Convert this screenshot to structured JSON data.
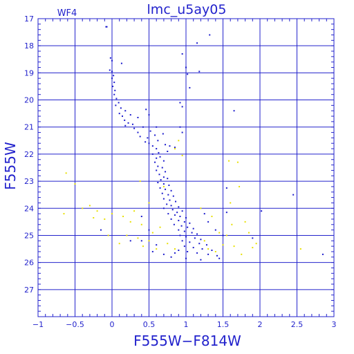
{
  "chart_data": {
    "type": "scatter",
    "title": "lmc_u5ay05",
    "subtitle": "WF4",
    "xlabel": "F555W−F814W",
    "ylabel": "F555W",
    "xlim": [
      -1,
      3
    ],
    "ylim": [
      28,
      17
    ],
    "y_inverted": true,
    "grid": true,
    "x_ticks": [
      -1,
      -0.5,
      0,
      0.5,
      1,
      1.5,
      2,
      2.5,
      3
    ],
    "x_tick_labels": [
      "−1",
      "−0.5",
      "0",
      "0.5",
      "1",
      "1.5",
      "2",
      "2.5",
      "3"
    ],
    "y_ticks": [
      17,
      18,
      19,
      20,
      21,
      22,
      23,
      24,
      25,
      26,
      27
    ],
    "y_tick_labels": [
      "17",
      "18",
      "19",
      "20",
      "21",
      "22",
      "23",
      "24",
      "25",
      "26",
      "27"
    ],
    "colors": {
      "axis": "#2222cc",
      "grid": "#2222cc",
      "blue_points": "#1a1acc",
      "yellow_points": "#e8e000"
    },
    "series": [
      {
        "color": "blue",
        "points": [
          [
            -0.08,
            17.3
          ],
          [
            -0.07,
            17.3
          ],
          [
            1.32,
            17.6
          ],
          [
            1.15,
            17.9
          ],
          [
            -0.02,
            18.45
          ],
          [
            0.0,
            18.55
          ],
          [
            0.13,
            18.65
          ],
          [
            -0.03,
            18.9
          ],
          [
            0.0,
            18.95
          ],
          [
            0.02,
            19.1
          ],
          [
            0.0,
            19.2
          ],
          [
            0.03,
            19.35
          ],
          [
            0.01,
            19.5
          ],
          [
            0.04,
            19.65
          ],
          [
            0.03,
            19.8
          ],
          [
            0.06,
            19.95
          ],
          [
            0.09,
            20.1
          ],
          [
            0.05,
            20.2
          ],
          [
            0.12,
            20.3
          ],
          [
            0.18,
            20.4
          ],
          [
            0.1,
            20.5
          ],
          [
            0.14,
            20.6
          ],
          [
            0.25,
            20.55
          ],
          [
            0.35,
            20.65
          ],
          [
            0.17,
            20.75
          ],
          [
            0.22,
            20.85
          ],
          [
            0.46,
            20.35
          ],
          [
            0.5,
            20.55
          ],
          [
            0.28,
            20.9
          ],
          [
            0.18,
            20.95
          ],
          [
            0.3,
            21.05
          ],
          [
            0.42,
            21.0
          ],
          [
            0.35,
            21.2
          ],
          [
            0.52,
            21.15
          ],
          [
            0.6,
            21.0
          ],
          [
            0.38,
            21.35
          ],
          [
            0.48,
            21.4
          ],
          [
            0.58,
            21.3
          ],
          [
            0.69,
            21.25
          ],
          [
            0.45,
            21.55
          ],
          [
            0.5,
            21.6
          ],
          [
            0.62,
            21.5
          ],
          [
            0.55,
            21.7
          ],
          [
            0.72,
            21.65
          ],
          [
            0.6,
            21.8
          ],
          [
            0.78,
            21.7
          ],
          [
            0.85,
            21.75
          ],
          [
            0.63,
            21.95
          ],
          [
            0.75,
            21.9
          ],
          [
            0.95,
            21.2
          ],
          [
            0.55,
            22.0
          ],
          [
            0.6,
            22.15
          ],
          [
            0.65,
            22.1
          ],
          [
            0.58,
            22.3
          ],
          [
            0.7,
            22.25
          ],
          [
            0.62,
            22.45
          ],
          [
            0.68,
            22.5
          ],
          [
            0.6,
            22.6
          ],
          [
            0.72,
            22.65
          ],
          [
            0.64,
            22.75
          ],
          [
            0.7,
            22.85
          ],
          [
            0.66,
            22.95
          ],
          [
            0.75,
            22.9
          ],
          [
            0.62,
            23.05
          ],
          [
            0.7,
            23.1
          ],
          [
            0.77,
            23.15
          ],
          [
            0.65,
            23.25
          ],
          [
            0.72,
            23.3
          ],
          [
            0.8,
            23.35
          ],
          [
            0.68,
            23.45
          ],
          [
            0.76,
            23.5
          ],
          [
            0.83,
            23.55
          ],
          [
            0.7,
            23.65
          ],
          [
            0.78,
            23.7
          ],
          [
            0.86,
            23.75
          ],
          [
            0.74,
            23.85
          ],
          [
            0.8,
            23.9
          ],
          [
            0.9,
            23.95
          ],
          [
            0.7,
            24.0
          ],
          [
            0.82,
            24.05
          ],
          [
            0.88,
            24.15
          ],
          [
            0.95,
            24.1
          ],
          [
            0.76,
            24.2
          ],
          [
            0.85,
            24.25
          ],
          [
            0.92,
            24.3
          ],
          [
            1.0,
            24.35
          ],
          [
            0.8,
            24.4
          ],
          [
            0.9,
            24.45
          ],
          [
            0.98,
            24.5
          ],
          [
            1.05,
            24.55
          ],
          [
            0.84,
            24.6
          ],
          [
            0.94,
            24.65
          ],
          [
            1.02,
            24.7
          ],
          [
            1.1,
            24.75
          ],
          [
            0.9,
            24.8
          ],
          [
            0.98,
            24.85
          ],
          [
            1.08,
            24.9
          ],
          [
            1.15,
            24.95
          ],
          [
            0.92,
            25.0
          ],
          [
            1.0,
            25.05
          ],
          [
            1.12,
            25.1
          ],
          [
            1.2,
            25.15
          ],
          [
            0.95,
            25.2
          ],
          [
            1.05,
            25.25
          ],
          [
            1.18,
            25.3
          ],
          [
            1.28,
            25.35
          ],
          [
            0.98,
            25.4
          ],
          [
            1.1,
            25.45
          ],
          [
            1.22,
            25.5
          ],
          [
            1.35,
            25.55
          ],
          [
            0.9,
            25.55
          ],
          [
            1.02,
            25.6
          ],
          [
            1.15,
            25.65
          ],
          [
            1.3,
            25.7
          ],
          [
            1.42,
            25.75
          ],
          [
            0.85,
            25.65
          ],
          [
            0.8,
            25.8
          ],
          [
            1.0,
            25.85
          ],
          [
            1.2,
            25.9
          ],
          [
            1.45,
            25.85
          ],
          [
            0.7,
            25.7
          ],
          [
            0.55,
            25.6
          ],
          [
            0.6,
            25.35
          ],
          [
            0.4,
            25.2
          ],
          [
            0.25,
            25.2
          ],
          [
            0.5,
            24.8
          ],
          [
            1.3,
            24.5
          ],
          [
            1.4,
            24.8
          ],
          [
            1.5,
            25.0
          ],
          [
            1.25,
            24.2
          ],
          [
            0.4,
            24.3
          ],
          [
            0.95,
            18.3
          ],
          [
            1.0,
            18.8
          ],
          [
            1.02,
            19.05
          ],
          [
            1.05,
            19.55
          ],
          [
            0.92,
            20.1
          ],
          [
            0.95,
            20.25
          ],
          [
            1.18,
            18.95
          ],
          [
            1.65,
            20.4
          ],
          [
            0.92,
            21.0
          ],
          [
            2.02,
            24.1
          ],
          [
            2.45,
            23.5
          ],
          [
            2.85,
            25.7
          ],
          [
            1.55,
            24.15
          ],
          [
            1.9,
            25.1
          ],
          [
            -0.15,
            24.8
          ],
          [
            1.55,
            23.25
          ]
        ]
      },
      {
        "color": "yellow",
        "points": [
          [
            -0.62,
            22.7
          ],
          [
            -0.65,
            24.2
          ],
          [
            -0.5,
            23.1
          ],
          [
            -0.4,
            24.0
          ],
          [
            -0.3,
            23.9
          ],
          [
            -0.2,
            24.1
          ],
          [
            -0.25,
            24.35
          ],
          [
            -0.1,
            24.4
          ],
          [
            -0.05,
            25.0
          ],
          [
            0.15,
            24.3
          ],
          [
            0.2,
            25.0
          ],
          [
            0.25,
            24.5
          ],
          [
            0.3,
            24.1
          ],
          [
            0.35,
            25.1
          ],
          [
            0.4,
            24.6
          ],
          [
            0.42,
            25.4
          ],
          [
            0.5,
            25.2
          ],
          [
            0.55,
            24.9
          ],
          [
            0.6,
            25.5
          ],
          [
            0.65,
            24.7
          ],
          [
            0.7,
            23.2
          ],
          [
            0.5,
            23.8
          ],
          [
            0.38,
            23.0
          ],
          [
            0.85,
            21.8
          ],
          [
            0.9,
            21.5
          ],
          [
            0.95,
            22.05
          ],
          [
            1.2,
            24.0
          ],
          [
            1.25,
            25.2
          ],
          [
            1.3,
            25.5
          ],
          [
            1.35,
            24.3
          ],
          [
            1.4,
            25.6
          ],
          [
            1.45,
            24.9
          ],
          [
            1.5,
            25.35
          ],
          [
            1.55,
            25.0
          ],
          [
            1.6,
            23.8
          ],
          [
            1.62,
            24.6
          ],
          [
            1.65,
            25.4
          ],
          [
            1.7,
            22.3
          ],
          [
            1.72,
            23.2
          ],
          [
            1.75,
            25.7
          ],
          [
            1.8,
            24.5
          ],
          [
            1.85,
            24.9
          ],
          [
            1.9,
            25.45
          ],
          [
            1.95,
            25.3
          ],
          [
            2.55,
            25.5
          ],
          [
            1.58,
            22.25
          ],
          [
            0.1,
            25.3
          ],
          [
            0.0,
            24.2
          ],
          [
            0.75,
            25.3
          ],
          [
            0.85,
            25.5
          ]
        ]
      }
    ]
  }
}
